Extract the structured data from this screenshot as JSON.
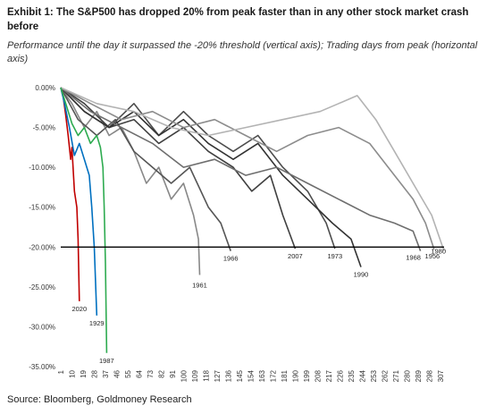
{
  "header": {
    "title": "Exhibit 1: The S&P500 has dropped 20% from peak faster than in any other stock market crash before",
    "subtitle": "Performance until the day it surpassed the -20% threshold (vertical axis); Trading days from peak (horizontal axis)"
  },
  "footer": {
    "source": "Source: Bloomberg, Goldmoney Research"
  },
  "chart_data": {
    "type": "line",
    "title": "Exhibit 1: The S&P500 has dropped 20% from peak faster than in any other stock market crash before",
    "xlabel": "Trading days from peak",
    "ylabel": "Performance until the day it surpassed the -20% threshold",
    "xlim": [
      1,
      310
    ],
    "ylim": [
      -0.35,
      0.0
    ],
    "y_ticks": [
      0,
      -0.05,
      -0.1,
      -0.15,
      -0.2,
      -0.25,
      -0.3,
      -0.35
    ],
    "y_tick_labels": [
      "0.00%",
      "-5.00%",
      "-10.00%",
      "-15.00%",
      "-20.00%",
      "-25.00%",
      "-30.00%",
      "-35.00%"
    ],
    "x_ticks": [
      1,
      10,
      19,
      28,
      37,
      46,
      55,
      64,
      73,
      82,
      91,
      100,
      109,
      118,
      127,
      136,
      145,
      154,
      163,
      172,
      181,
      190,
      199,
      208,
      217,
      226,
      235,
      244,
      253,
      262,
      271,
      280,
      289,
      298,
      307
    ],
    "threshold": -0.2,
    "grid": false,
    "legend": "none",
    "series": [
      {
        "name": "2020",
        "color": "#c00000",
        "end_x": 16,
        "end_y": -0.268,
        "points": [
          [
            1,
            0
          ],
          [
            3,
            -0.012
          ],
          [
            5,
            -0.035
          ],
          [
            7,
            -0.06
          ],
          [
            9,
            -0.09
          ],
          [
            10,
            -0.075
          ],
          [
            12,
            -0.13
          ],
          [
            14,
            -0.15
          ],
          [
            15,
            -0.19
          ],
          [
            16,
            -0.268
          ]
        ]
      },
      {
        "name": "1929",
        "color": "#0070c0",
        "end_x": 30,
        "end_y": -0.286,
        "points": [
          [
            1,
            0
          ],
          [
            4,
            -0.02
          ],
          [
            8,
            -0.05
          ],
          [
            12,
            -0.085
          ],
          [
            16,
            -0.07
          ],
          [
            20,
            -0.09
          ],
          [
            24,
            -0.11
          ],
          [
            26,
            -0.15
          ],
          [
            28,
            -0.2
          ],
          [
            30,
            -0.286
          ]
        ]
      },
      {
        "name": "1987",
        "color": "#2eab50",
        "end_x": 38,
        "end_y": -0.333,
        "points": [
          [
            1,
            0
          ],
          [
            5,
            -0.02
          ],
          [
            10,
            -0.045
          ],
          [
            15,
            -0.06
          ],
          [
            20,
            -0.05
          ],
          [
            25,
            -0.07
          ],
          [
            30,
            -0.06
          ],
          [
            33,
            -0.075
          ],
          [
            35,
            -0.1
          ],
          [
            36,
            -0.15
          ],
          [
            37,
            -0.22
          ],
          [
            38,
            -0.333
          ]
        ]
      },
      {
        "name": "1961",
        "color": "#888888",
        "end_x": 113,
        "end_y": -0.235,
        "points": [
          [
            1,
            0
          ],
          [
            10,
            -0.02
          ],
          [
            20,
            -0.05
          ],
          [
            30,
            -0.03
          ],
          [
            40,
            -0.06
          ],
          [
            50,
            -0.05
          ],
          [
            60,
            -0.08
          ],
          [
            70,
            -0.12
          ],
          [
            80,
            -0.1
          ],
          [
            90,
            -0.14
          ],
          [
            100,
            -0.12
          ],
          [
            108,
            -0.16
          ],
          [
            112,
            -0.19
          ],
          [
            113,
            -0.235
          ]
        ]
      },
      {
        "name": "1966",
        "color": "#555555",
        "end_x": 138,
        "end_y": -0.205,
        "points": [
          [
            1,
            0
          ],
          [
            15,
            -0.04
          ],
          [
            30,
            -0.06
          ],
          [
            45,
            -0.04
          ],
          [
            60,
            -0.08
          ],
          [
            75,
            -0.1
          ],
          [
            90,
            -0.12
          ],
          [
            105,
            -0.1
          ],
          [
            120,
            -0.15
          ],
          [
            130,
            -0.17
          ],
          [
            138,
            -0.205
          ]
        ]
      },
      {
        "name": "2007",
        "color": "#404040",
        "end_x": 190,
        "end_y": -0.202,
        "points": [
          [
            1,
            0
          ],
          [
            20,
            -0.02
          ],
          [
            40,
            -0.05
          ],
          [
            60,
            -0.04
          ],
          [
            80,
            -0.07
          ],
          [
            100,
            -0.05
          ],
          [
            120,
            -0.08
          ],
          [
            140,
            -0.1
          ],
          [
            155,
            -0.13
          ],
          [
            170,
            -0.11
          ],
          [
            180,
            -0.16
          ],
          [
            190,
            -0.202
          ]
        ]
      },
      {
        "name": "1973",
        "color": "#4d4d4d",
        "end_x": 222,
        "end_y": -0.202,
        "points": [
          [
            1,
            0
          ],
          [
            20,
            -0.03
          ],
          [
            40,
            -0.05
          ],
          [
            60,
            -0.02
          ],
          [
            80,
            -0.06
          ],
          [
            100,
            -0.03
          ],
          [
            120,
            -0.06
          ],
          [
            140,
            -0.08
          ],
          [
            160,
            -0.06
          ],
          [
            180,
            -0.1
          ],
          [
            200,
            -0.13
          ],
          [
            215,
            -0.17
          ],
          [
            222,
            -0.202
          ]
        ]
      },
      {
        "name": "1990",
        "color": "#333333",
        "end_x": 243,
        "end_y": -0.225,
        "points": [
          [
            1,
            0
          ],
          [
            20,
            -0.03
          ],
          [
            40,
            -0.05
          ],
          [
            60,
            -0.03
          ],
          [
            80,
            -0.06
          ],
          [
            100,
            -0.04
          ],
          [
            120,
            -0.07
          ],
          [
            140,
            -0.09
          ],
          [
            160,
            -0.07
          ],
          [
            180,
            -0.11
          ],
          [
            200,
            -0.14
          ],
          [
            220,
            -0.17
          ],
          [
            235,
            -0.19
          ],
          [
            243,
            -0.225
          ]
        ]
      },
      {
        "name": "1968",
        "color": "#6e6e6e",
        "end_x": 291,
        "end_y": -0.205,
        "points": [
          [
            1,
            0
          ],
          [
            25,
            -0.03
          ],
          [
            50,
            -0.05
          ],
          [
            75,
            -0.07
          ],
          [
            100,
            -0.1
          ],
          [
            125,
            -0.09
          ],
          [
            150,
            -0.11
          ],
          [
            175,
            -0.1
          ],
          [
            200,
            -0.12
          ],
          [
            225,
            -0.14
          ],
          [
            250,
            -0.16
          ],
          [
            270,
            -0.17
          ],
          [
            285,
            -0.18
          ],
          [
            291,
            -0.205
          ]
        ]
      },
      {
        "name": "1956",
        "color": "#8c8c8c",
        "end_x": 302,
        "end_y": -0.203,
        "points": [
          [
            1,
            0
          ],
          [
            25,
            -0.02
          ],
          [
            50,
            -0.04
          ],
          [
            75,
            -0.03
          ],
          [
            100,
            -0.05
          ],
          [
            125,
            -0.04
          ],
          [
            150,
            -0.06
          ],
          [
            175,
            -0.08
          ],
          [
            200,
            -0.06
          ],
          [
            225,
            -0.05
          ],
          [
            250,
            -0.07
          ],
          [
            270,
            -0.11
          ],
          [
            285,
            -0.14
          ],
          [
            295,
            -0.17
          ],
          [
            302,
            -0.203
          ]
        ]
      },
      {
        "name": "1980",
        "color": "#b3b3b3",
        "end_x": 310,
        "end_y": -0.205,
        "points": [
          [
            1,
            0
          ],
          [
            30,
            -0.02
          ],
          [
            60,
            -0.03
          ],
          [
            90,
            -0.05
          ],
          [
            120,
            -0.06
          ],
          [
            150,
            -0.05
          ],
          [
            180,
            -0.04
          ],
          [
            210,
            -0.03
          ],
          [
            225,
            -0.02
          ],
          [
            240,
            -0.01
          ],
          [
            255,
            -0.04
          ],
          [
            270,
            -0.08
          ],
          [
            285,
            -0.12
          ],
          [
            300,
            -0.16
          ],
          [
            310,
            -0.205
          ]
        ]
      }
    ]
  }
}
